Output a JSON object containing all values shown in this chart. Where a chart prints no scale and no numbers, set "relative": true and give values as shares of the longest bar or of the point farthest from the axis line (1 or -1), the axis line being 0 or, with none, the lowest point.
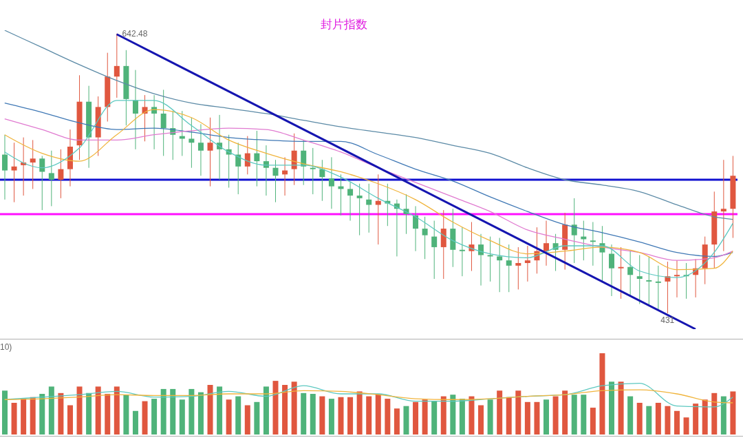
{
  "chart_data": [
    {
      "type": "candlestick",
      "title": "封片指数",
      "tick_labels": false,
      "categories": [
        null,
        null,
        null,
        null,
        null,
        null,
        null,
        null,
        null,
        null,
        null,
        null,
        null,
        null,
        null,
        null,
        null,
        null,
        null,
        null,
        null,
        null,
        null,
        null,
        null,
        null,
        null,
        null,
        null,
        null,
        null,
        null,
        null,
        null,
        null,
        null,
        null,
        null,
        null,
        null,
        null,
        null,
        null,
        null,
        null,
        null,
        null,
        null,
        null,
        null,
        null,
        null,
        null,
        null,
        null,
        null,
        null,
        null,
        null,
        null,
        null,
        null,
        null,
        null,
        null,
        null,
        null,
        null,
        null,
        null,
        null,
        null,
        null,
        null,
        null,
        null,
        null,
        null,
        null
      ],
      "ohlc": [
        [
          551,
          566,
          517,
          539
        ],
        [
          539,
          560,
          515,
          542
        ],
        [
          543,
          564,
          520,
          545
        ],
        [
          545,
          562,
          525,
          548
        ],
        [
          548,
          550,
          509,
          538
        ],
        [
          537,
          554,
          512,
          532
        ],
        [
          532,
          555,
          518,
          540
        ],
        [
          540,
          570,
          527,
          557
        ],
        [
          558,
          611,
          547,
          591
        ],
        [
          591,
          603,
          541,
          564
        ],
        [
          564,
          595,
          550,
          587
        ],
        [
          587,
          628,
          576,
          610
        ],
        [
          610,
          642.48,
          594,
          618
        ],
        [
          618,
          630,
          573,
          593
        ],
        [
          592,
          615,
          555,
          582
        ],
        [
          582,
          596,
          561,
          587
        ],
        [
          587,
          596,
          555,
          582
        ],
        [
          582,
          600,
          550,
          571
        ],
        [
          571,
          584,
          547,
          566
        ],
        [
          565,
          584,
          550,
          563
        ],
        [
          563,
          579,
          541,
          560
        ],
        [
          560,
          574,
          535,
          554
        ],
        [
          554,
          579,
          527,
          560
        ],
        [
          560,
          581,
          532,
          555
        ],
        [
          555,
          566,
          526,
          551
        ],
        [
          551,
          560,
          521,
          542
        ],
        [
          542,
          565,
          536,
          552
        ],
        [
          552,
          569,
          527,
          546
        ],
        [
          546,
          558,
          520,
          541
        ],
        [
          541,
          547,
          515,
          535
        ],
        [
          536,
          549,
          520,
          539
        ],
        [
          540,
          567,
          528,
          554
        ],
        [
          554,
          562,
          528,
          542
        ],
        [
          541,
          556,
          521,
          540
        ],
        [
          540,
          547,
          516,
          534
        ],
        [
          533,
          549,
          510,
          527
        ],
        [
          527,
          536,
          505,
          525
        ],
        [
          525,
          530,
          501,
          520
        ],
        [
          520,
          529,
          490,
          518
        ],
        [
          517,
          529,
          492,
          513
        ],
        [
          513,
          536,
          483,
          516
        ],
        [
          516,
          529,
          497,
          514
        ],
        [
          514,
          517,
          474,
          510
        ],
        [
          510,
          521,
          491,
          506
        ],
        [
          505,
          512,
          478,
          495
        ],
        [
          495,
          504,
          472,
          490
        ],
        [
          489,
          501,
          457,
          481
        ],
        [
          481,
          509,
          457,
          495
        ],
        [
          495,
          510,
          466,
          479
        ],
        [
          479,
          496,
          459,
          478
        ],
        [
          478,
          500,
          463,
          483
        ],
        [
          483,
          491,
          452,
          475
        ],
        [
          475,
          489,
          455,
          474
        ],
        [
          474,
          488,
          447,
          471
        ],
        [
          471,
          483,
          447,
          467
        ],
        [
          467,
          481,
          449,
          469
        ],
        [
          469,
          482,
          455,
          471
        ],
        [
          471,
          496,
          461,
          478
        ],
        [
          478,
          501,
          467,
          484
        ],
        [
          484,
          491,
          463,
          479
        ],
        [
          479,
          507,
          464,
          498
        ],
        [
          498,
          518,
          469,
          490
        ],
        [
          489,
          501,
          471,
          487
        ],
        [
          486,
          500,
          467,
          485
        ],
        [
          484,
          497,
          455,
          477
        ],
        [
          476,
          483,
          444,
          465
        ],
        [
          465,
          481,
          442,
          466
        ],
        [
          466,
          478,
          444,
          460
        ],
        [
          459,
          475,
          438,
          457
        ],
        [
          456,
          474,
          437,
          455
        ],
        [
          455,
          467,
          434,
          454
        ],
        [
          455,
          470,
          431,
          459
        ],
        [
          459,
          471,
          443,
          460
        ],
        [
          460,
          469,
          442,
          459
        ],
        [
          460,
          472,
          443,
          465
        ],
        [
          465,
          489,
          453,
          483
        ],
        [
          483,
          523,
          465,
          508
        ],
        [
          508,
          547,
          478,
          510
        ],
        [
          510,
          550,
          488,
          535
        ]
      ],
      "colors": [
        "#4fb37a",
        "#e0573f",
        "#e0573f",
        "#e0573f",
        "#4fb37a",
        "#4fb37a",
        "#e0573f",
        "#e0573f",
        "#e0573f",
        "#4fb37a",
        "#e0573f",
        "#e0573f",
        "#e0573f",
        "#4fb37a",
        "#4fb37a",
        "#e0573f",
        "#4fb37a",
        "#4fb37a",
        "#4fb37a",
        "#4fb37a",
        "#4fb37a",
        "#4fb37a",
        "#e0573f",
        "#4fb37a",
        "#4fb37a",
        "#4fb37a",
        "#e0573f",
        "#4fb37a",
        "#4fb37a",
        "#4fb37a",
        "#e0573f",
        "#e0573f",
        "#4fb37a",
        "#4fb37a",
        "#4fb37a",
        "#4fb37a",
        "#4fb37a",
        "#4fb37a",
        "#4fb37a",
        "#4fb37a",
        "#e0573f",
        "#4fb37a",
        "#4fb37a",
        "#4fb37a",
        "#4fb37a",
        "#4fb37a",
        "#4fb37a",
        "#e0573f",
        "#4fb37a",
        "#4fb37a",
        "#e0573f",
        "#4fb37a",
        "#4fb37a",
        "#4fb37a",
        "#4fb37a",
        "#e0573f",
        "#e0573f",
        "#e0573f",
        "#e0573f",
        "#4fb37a",
        "#e0573f",
        "#4fb37a",
        "#4fb37a",
        "#4fb37a",
        "#4fb37a",
        "#4fb37a",
        "#e0573f",
        "#4fb37a",
        "#4fb37a",
        "#4fb37a",
        "#4fb37a",
        "#e0573f",
        "#e0573f",
        "#4fb37a",
        "#e0573f",
        "#e0573f",
        "#e0573f",
        "#e0573f",
        "#e0573f"
      ],
      "series": [
        {
          "type": "line",
          "color": "#5b8aa6",
          "values": [
            645,
            null,
            null,
            null,
            632,
            null,
            null,
            null,
            619,
            null,
            null,
            null,
            607,
            null,
            null,
            null,
            597,
            null,
            null,
            null,
            590,
            null,
            null,
            null,
            586,
            null,
            null,
            null,
            582,
            null,
            null,
            null,
            577,
            null,
            null,
            null,
            572,
            null,
            null,
            null,
            568,
            null,
            null,
            null,
            564,
            null,
            null,
            null,
            558,
            null,
            null,
            null,
            552,
            null,
            null,
            null,
            541,
            null,
            null,
            null,
            532,
            null,
            null,
            null,
            528,
            null,
            null,
            null,
            523,
            null,
            null,
            null,
            513,
            null,
            null,
            null,
            504,
            null,
            502
          ]
        },
        {
          "type": "line",
          "color": "#3f78b5",
          "values": [
            590,
            null,
            null,
            null,
            583,
            null,
            null,
            null,
            575,
            null,
            null,
            null,
            570,
            null,
            null,
            null,
            571,
            null,
            null,
            null,
            568,
            null,
            null,
            null,
            564,
            null,
            null,
            null,
            562,
            null,
            null,
            null,
            561,
            null,
            null,
            null,
            561,
            null,
            null,
            null,
            551,
            null,
            null,
            null,
            540,
            null,
            null,
            null,
            531,
            null,
            null,
            null,
            519,
            null,
            null,
            null,
            508,
            null,
            null,
            null,
            498,
            null,
            null,
            null,
            492,
            null,
            null,
            null,
            485,
            null,
            null,
            null,
            477,
            null,
            null,
            null,
            474,
            null,
            477
          ]
        },
        {
          "type": "line",
          "color": "#e07ad0",
          "values": [
            578,
            null,
            null,
            null,
            570,
            null,
            null,
            null,
            562,
            null,
            null,
            null,
            562,
            null,
            null,
            null,
            566,
            null,
            null,
            null,
            569,
            null,
            null,
            null,
            571,
            null,
            null,
            null,
            570,
            null,
            null,
            null,
            562,
            null,
            null,
            null,
            553,
            null,
            null,
            null,
            541,
            null,
            null,
            null,
            530,
            null,
            null,
            null,
            519,
            null,
            null,
            null,
            508,
            null,
            null,
            null,
            494,
            null,
            null,
            null,
            487,
            null,
            null,
            null,
            481,
            null,
            null,
            null,
            477,
            null,
            null,
            null,
            471,
            null,
            null,
            null,
            473,
            null,
            478
          ]
        },
        {
          "type": "line",
          "color": "#f0b43c",
          "values": [
            566,
            null,
            null,
            null,
            552,
            null,
            null,
            null,
            546,
            null,
            null,
            null,
            566,
            null,
            null,
            null,
            585,
            null,
            null,
            null,
            579,
            null,
            null,
            null,
            562,
            null,
            null,
            null,
            552,
            null,
            null,
            null,
            544,
            null,
            null,
            null,
            538,
            null,
            null,
            null,
            529,
            null,
            null,
            null,
            517,
            null,
            null,
            null,
            500,
            null,
            null,
            null,
            486,
            null,
            null,
            null,
            476,
            null,
            null,
            null,
            478,
            null,
            null,
            null,
            481,
            null,
            null,
            null,
            477,
            null,
            null,
            null,
            464,
            null,
            null,
            null,
            465,
            null,
            478
          ]
        },
        {
          "type": "line",
          "color": "#5cc8c0",
          "values": [
            553,
            null,
            null,
            null,
            541,
            null,
            null,
            null,
            556,
            null,
            null,
            null,
            592,
            null,
            null,
            null,
            592,
            null,
            null,
            null,
            573,
            null,
            null,
            null,
            553,
            null,
            null,
            null,
            543,
            null,
            null,
            null,
            543,
            null,
            null,
            null,
            534,
            null,
            null,
            null,
            518,
            null,
            null,
            null,
            504,
            null,
            null,
            null,
            486,
            null,
            null,
            null,
            476,
            null,
            null,
            null,
            473,
            null,
            null,
            null,
            482,
            null,
            null,
            null,
            482,
            null,
            null,
            null,
            463,
            null,
            null,
            null,
            458,
            null,
            null,
            null,
            477,
            null,
            499
          ]
        },
        {
          "type": "line",
          "color": "#1515b0",
          "values": [
            null,
            null,
            null,
            null,
            null,
            null,
            null,
            null,
            null,
            null,
            null,
            null,
            642,
            null,
            null,
            null,
            null,
            null,
            null,
            null,
            null,
            null,
            null,
            null,
            null,
            null,
            null,
            null,
            null,
            null,
            null,
            null,
            null,
            null,
            null,
            null,
            null,
            null,
            null,
            null,
            null,
            null,
            null,
            null,
            null,
            null,
            null,
            null,
            null,
            null,
            null,
            null,
            null,
            null,
            null,
            null,
            null,
            null,
            null,
            null,
            null,
            null,
            null,
            null,
            null,
            null,
            null,
            null,
            null,
            null,
            null,
            null,
            null,
            null,
            419,
            null,
            null,
            null,
            null
          ]
        }
      ],
      "ref_lines": [
        {
          "axis": "y",
          "value": 532,
          "color": "#1010d0"
        },
        {
          "axis": "y",
          "value": 506,
          "color": "#ff10ff"
        }
      ],
      "annotations": [
        "642.48",
        "431"
      ]
    },
    {
      "type": "bar",
      "relative": true,
      "tick_labels": false,
      "categories": [
        null,
        null,
        null,
        null,
        null,
        null,
        null,
        null,
        null,
        null,
        null,
        null,
        null,
        null,
        null,
        null,
        null,
        null,
        null,
        null,
        null,
        null,
        null,
        null,
        null,
        null,
        null,
        null,
        null,
        null,
        null,
        null,
        null,
        null,
        null,
        null,
        null,
        null,
        null,
        null,
        null,
        null,
        null,
        null,
        null,
        null,
        null,
        null,
        null,
        null,
        null,
        null,
        null,
        null,
        null,
        null,
        null,
        null,
        null,
        null,
        null,
        null,
        null,
        null,
        null,
        null,
        null,
        null,
        null,
        null,
        null,
        null,
        null,
        null,
        null,
        null,
        null,
        null,
        null
      ],
      "series": [
        {
          "type": "bar",
          "values": [
            0.54,
            0.39,
            0.44,
            0.46,
            0.5,
            0.59,
            0.51,
            0.36,
            0.59,
            0.51,
            0.59,
            0.5,
            0.59,
            0.49,
            0.29,
            0.41,
            0.44,
            0.56,
            0.56,
            0.43,
            0.56,
            0.52,
            0.61,
            0.59,
            0.43,
            0.47,
            0.36,
            0.4,
            0.59,
            0.66,
            0.61,
            0.65,
            0.51,
            0.5,
            0.47,
            0.44,
            0.46,
            0.46,
            0.53,
            0.47,
            0.5,
            0.44,
            0.32,
            0.35,
            0.4,
            0.43,
            0.41,
            0.47,
            0.49,
            0.44,
            0.47,
            0.36,
            0.43,
            0.54,
            0.46,
            0.54,
            0.4,
            0.4,
            0.43,
            0.47,
            0.54,
            0.49,
            0.49,
            0.33,
            1,
            0.65,
            0.65,
            0.47,
            0.39,
            0.35,
            0.39,
            0.35,
            0.29,
            0.21,
            0.38,
            0.43,
            0.51,
            0.47,
            0.53
          ],
          "colors": [
            "#4fb37a",
            "#e0573f",
            "#e0573f",
            "#e0573f",
            "#4fb37a",
            "#4fb37a",
            "#e0573f",
            "#e0573f",
            "#e0573f",
            "#4fb37a",
            "#e0573f",
            "#e0573f",
            "#e0573f",
            "#4fb37a",
            "#4fb37a",
            "#e0573f",
            "#4fb37a",
            "#4fb37a",
            "#4fb37a",
            "#4fb37a",
            "#4fb37a",
            "#4fb37a",
            "#e0573f",
            "#4fb37a",
            "#e0573f",
            "#4fb37a",
            "#e0573f",
            "#4fb37a",
            "#4fb37a",
            "#e0573f",
            "#e0573f",
            "#e0573f",
            "#4fb37a",
            "#4fb37a",
            "#e0573f",
            "#4fb37a",
            "#e0573f",
            "#e0573f",
            "#e0573f",
            "#e0573f",
            "#e0573f",
            "#e0573f",
            "#e0573f",
            "#4fb37a",
            "#e0573f",
            "#e0573f",
            "#4fb37a",
            "#e0573f",
            "#4fb37a",
            "#4fb37a",
            "#e0573f",
            "#e0573f",
            "#4fb37a",
            "#e0573f",
            "#e0573f",
            "#e0573f",
            "#e0573f",
            "#e0573f",
            "#4fb37a",
            "#e0573f",
            "#e0573f",
            "#4fb37a",
            "#4fb37a",
            "#e0573f",
            "#e0573f",
            "#4fb37a",
            "#e0573f",
            "#4fb37a",
            "#e0573f",
            "#4fb37a",
            "#e0573f",
            "#e0573f",
            "#e0573f",
            "#e0573f",
            "#e0573f",
            "#e0573f",
            "#e0573f",
            "#4fb37a",
            "#e0573f"
          ]
        },
        {
          "type": "line",
          "color": "#5cc8c0",
          "values": [
            0.43,
            null,
            null,
            null,
            0.46,
            null,
            null,
            null,
            0.49,
            null,
            null,
            null,
            0.53,
            null,
            null,
            null,
            0.46,
            null,
            null,
            null,
            0.47,
            null,
            null,
            null,
            0.53,
            null,
            null,
            null,
            0.47,
            null,
            null,
            null,
            0.6,
            null,
            null,
            null,
            0.5,
            null,
            null,
            null,
            0.5,
            null,
            null,
            null,
            0.41,
            null,
            null,
            null,
            0.41,
            null,
            null,
            null,
            0.44,
            null,
            null,
            null,
            0.47,
            null,
            null,
            null,
            0.49,
            null,
            null,
            null,
            0.6,
            null,
            null,
            null,
            0.63,
            null,
            null,
            null,
            0.35,
            null,
            null,
            null,
            0.34,
            null,
            0.46
          ]
        },
        {
          "type": "line",
          "color": "#f0b43c",
          "values": [
            0.43,
            null,
            null,
            null,
            0.44,
            null,
            null,
            null,
            0.46,
            null,
            null,
            null,
            0.49,
            null,
            null,
            null,
            0.48,
            null,
            null,
            null,
            0.48,
            null,
            null,
            null,
            0.5,
            null,
            null,
            null,
            0.5,
            null,
            null,
            null,
            0.54,
            null,
            null,
            null,
            0.53,
            null,
            null,
            null,
            0.49,
            null,
            null,
            null,
            0.44,
            null,
            null,
            null,
            0.43,
            null,
            null,
            null,
            0.44,
            null,
            null,
            null,
            0.47,
            null,
            null,
            null,
            0.49,
            null,
            null,
            null,
            0.54,
            null,
            null,
            null,
            0.55,
            null,
            null,
            null,
            0.5,
            null,
            null,
            null,
            0.4,
            null,
            0.39
          ]
        }
      ],
      "annotations": [
        "10)"
      ]
    }
  ]
}
